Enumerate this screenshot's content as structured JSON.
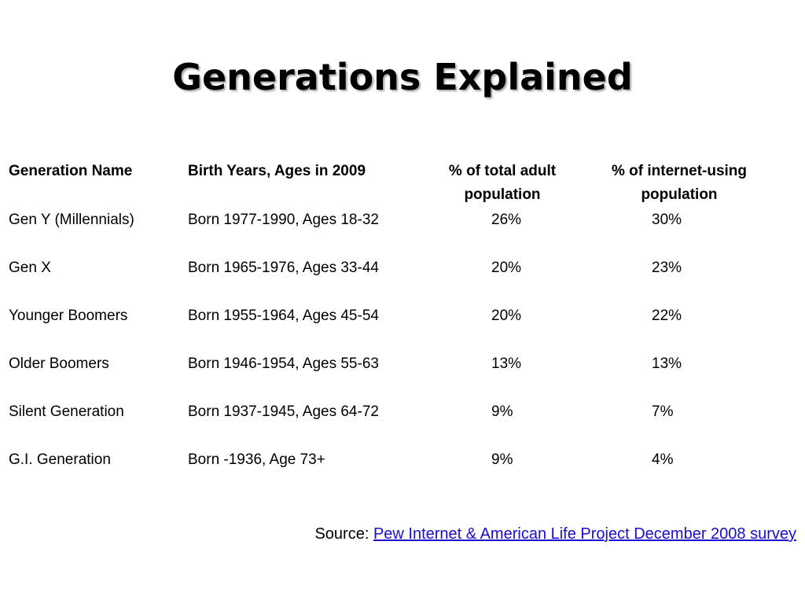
{
  "title": "Generations Explained",
  "table": {
    "headers": {
      "name": "Generation Name",
      "birth": "Birth Years, Ages in 2009",
      "total_line1": "% of total adult",
      "total_line2": "population",
      "internet_line1": "% of internet-using",
      "internet_line2": "population"
    },
    "rows": [
      {
        "name": "Gen Y (Millennials)",
        "birth": "Born 1977-1990, Ages 18-32",
        "total": "26%",
        "internet": "30%"
      },
      {
        "name": "Gen X",
        "birth": "Born 1965-1976, Ages 33-44",
        "total": "20%",
        "internet": "23%"
      },
      {
        "name": "Younger Boomers",
        "birth": "Born 1955-1964, Ages 45-54",
        "total": "20%",
        "internet": "22%"
      },
      {
        "name": "Older Boomers",
        "birth": "Born 1946-1954, Ages 55-63",
        "total": "13%",
        "internet": "13%"
      },
      {
        "name": "Silent Generation",
        "birth": "Born 1937-1945, Ages 64-72",
        "total": "9%",
        "internet": "7%"
      },
      {
        "name": "G.I. Generation",
        "birth": "Born -1936, Age 73+",
        "total": "9%",
        "internet": "4%"
      }
    ]
  },
  "source": {
    "prefix": "Source: ",
    "link_text": "Pew Internet & American Life Project December 2008 survey"
  },
  "colors": {
    "link": "#1a0dce",
    "text": "#000000",
    "background": "#ffffff"
  }
}
